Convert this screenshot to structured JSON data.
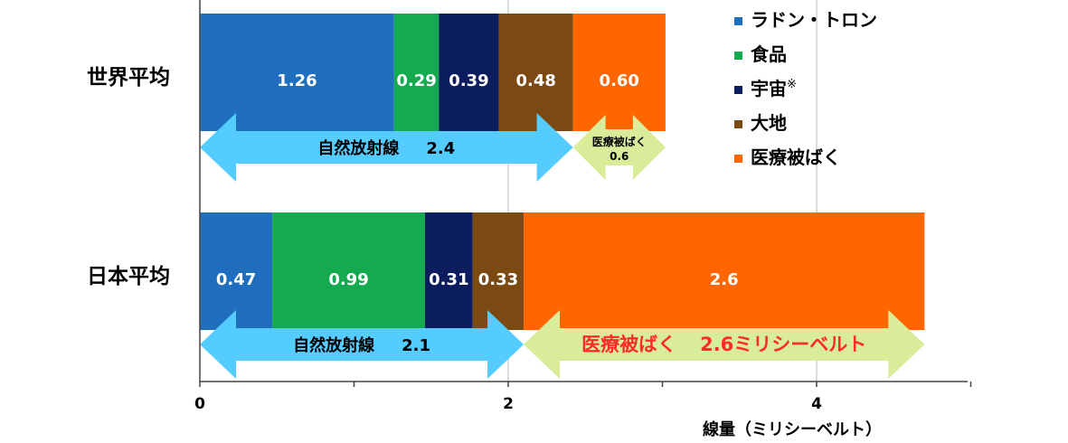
{
  "colors": {
    "radon": "#1f6fbe",
    "food": "#13aa50",
    "cosmic": "#0b1d5e",
    "ground": "#7a4a12",
    "medical": "#ff6600",
    "natural_arrow": "#55ccff",
    "medical_arrow": "#d9ec9a",
    "grid": "#d0d0d0"
  },
  "chart_data": {
    "type": "bar",
    "orientation": "horizontal",
    "stacked": true,
    "categories": [
      "世界平均",
      "日本平均"
    ],
    "series": [
      {
        "name": "ラドン・トロン",
        "color_key": "radon",
        "values": [
          1.26,
          0.47
        ],
        "labels": [
          "1.26",
          "0.47"
        ]
      },
      {
        "name": "食品",
        "color_key": "food",
        "values": [
          0.29,
          0.99
        ],
        "labels": [
          "0.29",
          "0.99"
        ]
      },
      {
        "name": "宇宙",
        "legend_mark": "※",
        "color_key": "cosmic",
        "values": [
          0.39,
          0.31
        ],
        "labels": [
          "0.39",
          "0.31"
        ]
      },
      {
        "name": "大地",
        "color_key": "ground",
        "values": [
          0.48,
          0.33
        ],
        "labels": [
          "0.48",
          "0.33"
        ]
      },
      {
        "name": "医療被ばく",
        "color_key": "medical",
        "values": [
          0.6,
          2.6
        ],
        "labels": [
          "0.60",
          "2.6"
        ]
      }
    ],
    "xlim": [
      0,
      5
    ],
    "xticks": [
      {
        "value": 0,
        "label": "0"
      },
      {
        "value": 2,
        "label": "2"
      },
      {
        "value": 4,
        "label": "4"
      }
    ],
    "xlabel": "線量（ミリシーベルト）",
    "grid": true,
    "legend_position": "top-right",
    "annotations": [
      {
        "category": 0,
        "from": 0,
        "to": 2.42,
        "color_key": "natural_arrow",
        "size": "large",
        "parts": [
          "自然放射線",
          "2.4"
        ]
      },
      {
        "category": 0,
        "from": 2.42,
        "to": 3.02,
        "color_key": "medical_arrow",
        "size": "small",
        "parts": [
          "医療被ばく",
          "0.6"
        ]
      },
      {
        "category": 1,
        "from": 0,
        "to": 2.1,
        "color_key": "natural_arrow",
        "size": "large",
        "parts": [
          "自然放射線",
          "2.1"
        ]
      },
      {
        "category": 1,
        "from": 2.1,
        "to": 4.7,
        "color_key": "medical_arrow",
        "size": "red",
        "parts": [
          "医療被ばく",
          "2.6ミリシーベルト"
        ]
      }
    ]
  }
}
